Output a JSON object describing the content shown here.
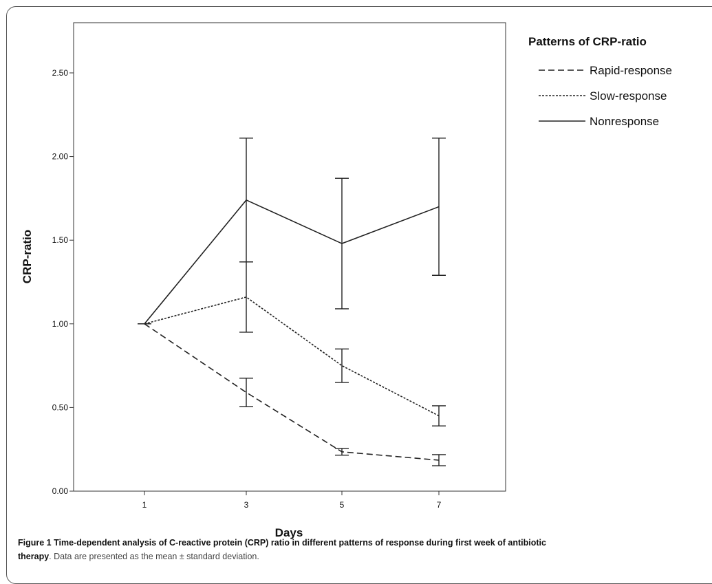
{
  "chart_data": {
    "type": "line",
    "title": "",
    "xlabel": "Days",
    "ylabel": "CRP-ratio",
    "categories": [
      "1",
      "3",
      "5",
      "7"
    ],
    "ylim": [
      0,
      2.8
    ],
    "yticks": [
      "0.00",
      "0.50",
      "1.00",
      "1.50",
      "2.00",
      "2.50"
    ],
    "grid": false,
    "legend": {
      "title": "Patterns of CRP-ratio",
      "position": "right"
    },
    "series": [
      {
        "name": "Rapid-response",
        "style": "dashed",
        "values": [
          1.0,
          0.59,
          0.235,
          0.185
        ],
        "error": [
          0.0,
          0.085,
          0.02,
          0.033
        ]
      },
      {
        "name": "Slow-response",
        "style": "dotted",
        "values": [
          1.0,
          1.16,
          0.75,
          0.45
        ],
        "error": [
          0.0,
          0.21,
          0.1,
          0.06
        ]
      },
      {
        "name": "Nonresponse",
        "style": "solid",
        "values": [
          1.0,
          1.74,
          1.48,
          1.7
        ],
        "error": [
          0.0,
          0.37,
          0.39,
          0.41
        ]
      }
    ]
  },
  "caption": {
    "bold": "Figure 1 Time-dependent analysis of C-reactive protein (CRP) ratio in different patterns of response during first week of antibiotic",
    "bold2": "therapy",
    "rest": ". Data are presented as the mean ± standard deviation."
  }
}
